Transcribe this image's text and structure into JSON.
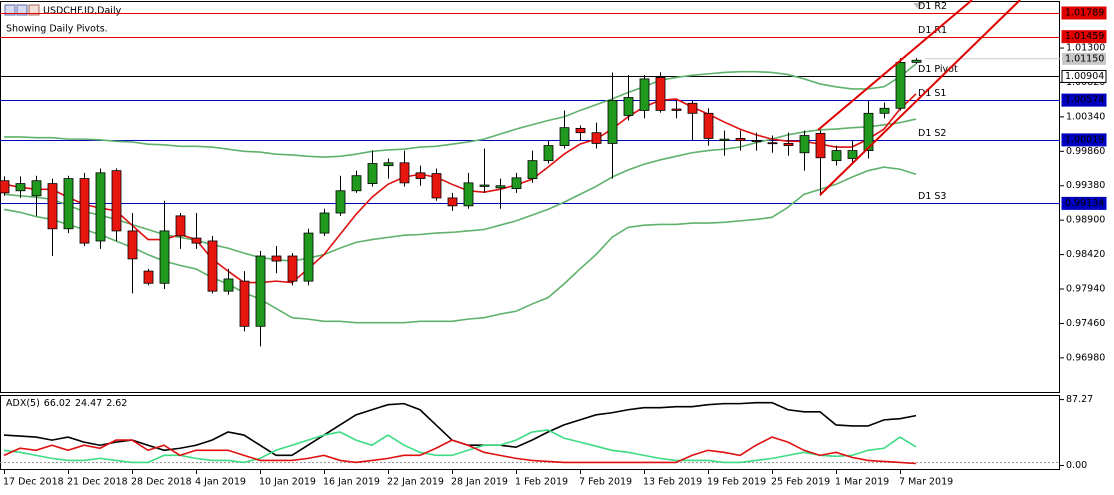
{
  "chart_data": [
    {
      "type": "candlestick",
      "title": "USDCHF.ID,Daily",
      "subtitle": "Showing Daily Pivots.",
      "categories": [
        "17 Dec 2018",
        null,
        null,
        null,
        "21 Dec 2018",
        null,
        null,
        null,
        "28 Dec 2018",
        null,
        null,
        null,
        "4 Jan 2019",
        null,
        null,
        null,
        "10 Jan 2019",
        null,
        null,
        null,
        "16 Jan 2019",
        null,
        null,
        null,
        "22 Jan 2019",
        null,
        null,
        null,
        "28 Jan 2019",
        null,
        null,
        null,
        "1 Feb 2019",
        null,
        null,
        null,
        "7 Feb 2019",
        null,
        null,
        null,
        "13 Feb 2019",
        null,
        null,
        null,
        "19 Feb 2019",
        null,
        null,
        null,
        "25 Feb 2019",
        null,
        null,
        null,
        "1 Mar 2019",
        null,
        null,
        null,
        "7 Mar 2019",
        null
      ],
      "open": [
        0.9945,
        0.9931,
        0.9924,
        0.9941,
        0.9878,
        0.9948,
        0.9861,
        0.9959,
        0.9875,
        0.9819,
        0.9802,
        0.9896,
        0.9865,
        0.9861,
        0.9791,
        0.9805,
        0.9742,
        0.984,
        0.984,
        0.9805,
        0.9872,
        0.99,
        0.9931,
        0.9941,
        0.9966,
        0.997,
        0.9956,
        0.9955,
        0.9921,
        0.991,
        0.9937,
        0.9935,
        0.9934,
        0.9948,
        0.9973,
        0.9994,
        1.0018,
        1.0012,
        0.9997,
        1.0036,
        1.0043,
        1.0089,
        1.0045,
        1.0053,
        1.0039,
        1.0001,
        1.0004,
        1.0001,
        0.9998,
        0.9997,
        0.9984,
        1.0011,
        0.9973,
        0.9976,
        0.9987,
        1.0039,
        1.0046,
        1.011
      ],
      "high": [
        0.9951,
        0.9951,
        0.9952,
        0.9948,
        0.9952,
        0.9956,
        0.9962,
        0.9962,
        0.99,
        0.9822,
        0.9917,
        0.99,
        0.99,
        0.9868,
        0.9822,
        0.9819,
        0.9847,
        0.9854,
        0.9844,
        0.9878,
        0.9906,
        0.9952,
        0.9959,
        0.9987,
        0.9976,
        0.9987,
        0.9966,
        0.9962,
        0.9928,
        0.9956,
        0.999,
        0.9948,
        0.9956,
        0.9987,
        1.0001,
        1.0043,
        1.0022,
        1.0026,
        1.0096,
        1.0092,
        1.0092,
        1.0096,
        1.0057,
        1.0057,
        1.0046,
        1.0015,
        1.0015,
        1.0012,
        1.0008,
        1.0012,
        1.0015,
        1.0015,
        0.9994,
        1.0001,
        1.0057,
        1.0054,
        1.0116,
        1.0116
      ],
      "low": [
        0.9924,
        0.9921,
        0.9896,
        0.984,
        0.9872,
        0.9854,
        0.985,
        0.9861,
        0.9788,
        0.9799,
        0.9794,
        0.985,
        0.985,
        0.9788,
        0.9786,
        0.9735,
        0.9714,
        0.9816,
        0.9799,
        0.9799,
        0.9868,
        0.9896,
        0.9928,
        0.9937,
        0.9948,
        0.9937,
        0.9938,
        0.9917,
        0.9903,
        0.9906,
        0.9928,
        0.9906,
        0.9928,
        0.9942,
        0.9969,
        0.999,
        1.0001,
        0.999,
        0.9948,
        1.0029,
        1.0032,
        1.004,
        1.0032,
        1.0001,
        0.9994,
        0.998,
        0.9987,
        0.9987,
        0.9984,
        0.998,
        0.9959,
        0.9924,
        0.9966,
        0.997,
        0.9976,
        1.0032,
        1.0043,
        1.0108
      ],
      "close": [
        0.9928,
        0.9941,
        0.9945,
        0.9878,
        0.9948,
        0.9858,
        0.9956,
        0.9875,
        0.9836,
        0.9802,
        0.9875,
        0.9868,
        0.9858,
        0.9791,
        0.9808,
        0.9742,
        0.984,
        0.9833,
        0.9805,
        0.9872,
        0.99,
        0.9931,
        0.9952,
        0.9969,
        0.997,
        0.9942,
        0.9948,
        0.9921,
        0.991,
        0.9942,
        0.9939,
        0.9938,
        0.9949,
        0.9973,
        0.9994,
        1.0019,
        1.0012,
        0.9997,
        1.0057,
        1.0061,
        1.0087,
        1.0043,
        1.0043,
        1.0039,
        1.0004,
        1.0003,
        1.0001,
        1,
        0.9997,
        0.9994,
        1.0008,
        0.9977,
        0.9987,
        0.9987,
        1.0039,
        1.0046,
        1.011,
        1.0113
      ],
      "up_color": "#1f9a1f",
      "down_color": "#e8160f",
      "series": [
        {
          "color": "#5fb26b",
          "values": [
            1.0006,
            1.0006,
            1.0005,
            1.0005,
            1.0003,
            1.0003,
            1.0002,
            1.0,
            0.9999,
            0.9996,
            0.9995,
            0.9993,
            0.9993,
            0.9992,
            0.9989,
            0.9986,
            0.9985,
            0.9982,
            0.9981,
            0.9979,
            0.9978,
            0.9979,
            0.9982,
            0.9986,
            0.9988,
            0.9989,
            0.9992,
            0.9993,
            0.9996,
            0.9999,
            1.0003,
            1.001,
            1.0017,
            1.0023,
            1.0029,
            1.0034,
            1.0043,
            1.0051,
            1.0059,
            1.0068,
            1.0076,
            1.0085,
            1.0089,
            1.0092,
            1.0094,
            1.0096,
            1.0097,
            1.0097,
            1.0096,
            1.0093,
            1.0087,
            1.008,
            1.0076,
            1.0073,
            1.0073,
            1.0076,
            1.009,
            1.0108
          ]
        },
        {
          "color": "#5fb26b",
          "values": [
            0.9926,
            0.9924,
            0.9922,
            0.9919,
            0.9911,
            0.9902,
            0.9897,
            0.9891,
            0.9884,
            0.9877,
            0.987,
            0.9866,
            0.9862,
            0.9856,
            0.9851,
            0.9844,
            0.9838,
            0.9835,
            0.9833,
            0.9837,
            0.9842,
            0.9851,
            0.9859,
            0.9863,
            0.9866,
            0.9869,
            0.987,
            0.9872,
            0.9873,
            0.9875,
            0.9877,
            0.9883,
            0.9889,
            0.9897,
            0.9905,
            0.9915,
            0.9926,
            0.9937,
            0.995,
            0.996,
            0.9968,
            0.9974,
            0.9979,
            0.9984,
            0.9987,
            0.9989,
            0.9992,
            0.9998,
            1.0003,
            1.0009,
            1.0013,
            1.0016,
            1.0017,
            1.0019,
            1.002,
            1.0023,
            1.0026,
            1.0031
          ]
        },
        {
          "color": "#5fb26b",
          "values": [
            0.9905,
            0.9901,
            0.9895,
            0.9891,
            0.9884,
            0.9877,
            0.987,
            0.9861,
            0.9852,
            0.9842,
            0.9833,
            0.9827,
            0.9822,
            0.981,
            0.9801,
            0.9789,
            0.978,
            0.9767,
            0.9754,
            0.9752,
            0.9749,
            0.9749,
            0.9747,
            0.9747,
            0.9747,
            0.9747,
            0.9749,
            0.9749,
            0.9749,
            0.9752,
            0.9754,
            0.9759,
            0.9763,
            0.9773,
            0.9782,
            0.9801,
            0.9822,
            0.9842,
            0.9866,
            0.988,
            0.9883,
            0.9884,
            0.9884,
            0.9886,
            0.9886,
            0.9887,
            0.9889,
            0.9891,
            0.9894,
            0.9908,
            0.9926,
            0.9933,
            0.994,
            0.995,
            0.9959,
            0.9964,
            0.9961,
            0.9954
          ]
        },
        {
          "color": "#e01010",
          "values": [
            0.994,
            0.9936,
            0.9933,
            0.9933,
            0.9922,
            0.9912,
            0.9907,
            0.9903,
            0.9883,
            0.9863,
            0.9863,
            0.987,
            0.9863,
            0.9836,
            0.9819,
            0.9803,
            0.9803,
            0.9805,
            0.9803,
            0.9822,
            0.9842,
            0.987,
            0.9898,
            0.9922,
            0.994,
            0.995,
            0.9954,
            0.995,
            0.994,
            0.9931,
            0.9929,
            0.9933,
            0.9939,
            0.9947,
            0.9964,
            0.9982,
            0.9996,
            1.0003,
            1.0017,
            1.0034,
            1.0048,
            1.0057,
            1.0059,
            1.0048,
            1.0038,
            1.0027,
            1.0017,
            1.0009,
            1.0003,
            1.0,
            1.0,
            0.9996,
            0.9992,
            0.9992,
            1.0003,
            1.0017,
            1.0045,
            1.0066
          ]
        }
      ],
      "levels": [
        {
          "label": "D1 R2",
          "value": 1.01789,
          "color": "#e00000"
        },
        {
          "label": "D1 R1",
          "value": 1.01459,
          "color": "#e00000"
        },
        {
          "label": "D1 Pivot",
          "value": 1.00904,
          "color": "#000000"
        },
        {
          "label": "D1 S1",
          "value": 1.00574,
          "color": "#0000c0"
        },
        {
          "label": "D1 S2",
          "value": 1.00019,
          "color": "#0000c0"
        },
        {
          "label": "D1 S3",
          "value": 0.99134,
          "color": "#0000c0"
        }
      ],
      "last_price": {
        "value": 1.0115,
        "label": "1.01150"
      },
      "ylim": [
        0.9649,
        1.0197
      ],
      "yticks": [
        {
          "value": 1.013,
          "label": "1.01300"
        },
        {
          "value": 1.0082,
          "label": "1.00820"
        },
        {
          "value": 1.0034,
          "label": "1.00340"
        },
        {
          "value": 0.9986,
          "label": "0.99860"
        },
        {
          "value": 0.9938,
          "label": "0.99380"
        },
        {
          "value": 0.989,
          "label": "0.98900"
        },
        {
          "value": 0.9842,
          "label": "0.98420"
        },
        {
          "value": 0.9794,
          "label": "0.97940"
        },
        {
          "value": 0.9746,
          "label": "0.97460"
        },
        {
          "value": 0.9698,
          "label": "0.96980"
        }
      ]
    },
    {
      "type": "line",
      "title": "ADX(5)",
      "series": [
        {
          "color": "#000000",
          "values": [
            40.3,
            38.9,
            37.6,
            33.6,
            37.6,
            30.9,
            26.8,
            30.9,
            33.6,
            26.8,
            20.1,
            22.8,
            26.8,
            33.6,
            44.3,
            40.3,
            26.8,
            13.4,
            13.4,
            26.8,
            40.3,
            53.7,
            67.1,
            73.8,
            80.5,
            81.9,
            73.8,
            53.7,
            33.6,
            26.8,
            26.8,
            26.8,
            24.2,
            33.6,
            44.3,
            53.7,
            60.4,
            67.1,
            69.8,
            73.8,
            76.5,
            76.5,
            77.9,
            77.9,
            80.5,
            81.9,
            81.9,
            83.2,
            83.2,
            73.8,
            71.1,
            71.1,
            53.7,
            52.3,
            52.3,
            60.4,
            62,
            66.02
          ]
        },
        {
          "color": "#3ddc84",
          "values": [
            20.1,
            17.4,
            13.4,
            9.4,
            6.7,
            6.7,
            9.4,
            6.7,
            4.0,
            4.0,
            13.4,
            13.4,
            9.4,
            6.7,
            6.7,
            4.0,
            9.4,
            20.1,
            26.8,
            33.6,
            40.3,
            44.3,
            33.6,
            26.8,
            40.3,
            26.8,
            17.4,
            13.4,
            13.4,
            20.1,
            26.8,
            26.8,
            33.6,
            44.3,
            47.0,
            36.2,
            30.9,
            25.5,
            20.1,
            17.4,
            13.4,
            9.4,
            6.7,
            6.7,
            6.7,
            4.0,
            4.0,
            6.7,
            9.4,
            13.4,
            17.4,
            13.4,
            12.1,
            13.4,
            20.1,
            22.8,
            37.6,
            24.47
          ]
        },
        {
          "color": "#e01010",
          "values": [
            13.4,
            22.8,
            20.1,
            26.8,
            20.1,
            26.8,
            22.8,
            33.6,
            33.6,
            20.1,
            26.8,
            13.4,
            20.1,
            20.1,
            20.1,
            13.4,
            6.7,
            6.7,
            6.7,
            9.4,
            13.4,
            6.7,
            4.0,
            6.7,
            9.4,
            13.4,
            13.4,
            22.8,
            33.6,
            26.8,
            17.4,
            13.4,
            9.4,
            6.7,
            5.4,
            4.0,
            4.0,
            4.0,
            4.0,
            4.0,
            4.0,
            4.0,
            4.0,
            13.4,
            20.1,
            17.4,
            13.4,
            26.8,
            37.6,
            30.9,
            20.1,
            13.4,
            17.4,
            10.7,
            6.7,
            5.4,
            4.0,
            2.62
          ]
        }
      ],
      "ylim": [
        -6,
        92
      ],
      "yticks": [
        87.27,
        {
          "value": 0,
          "label": "0.00"
        }
      ]
    }
  ]
}
